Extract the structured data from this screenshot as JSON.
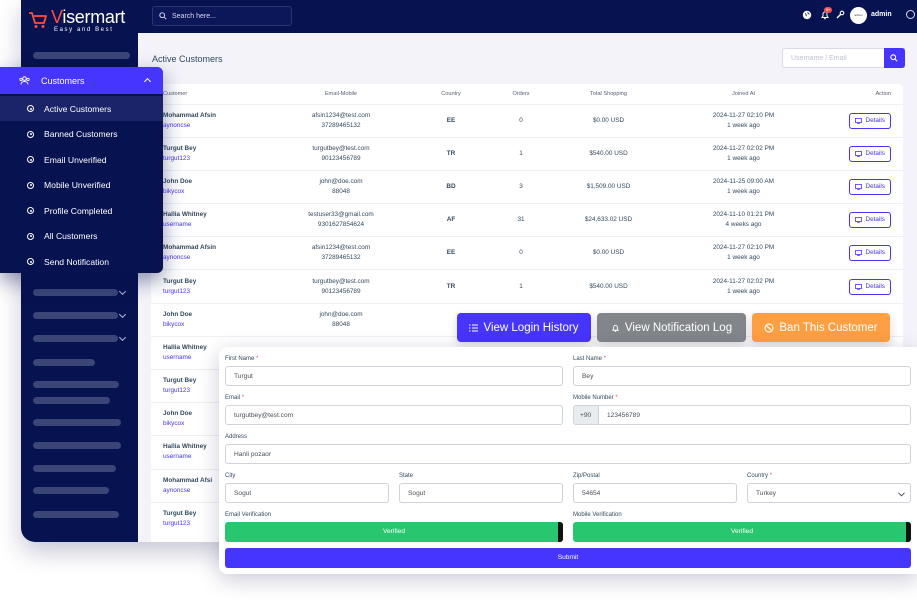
{
  "app": {
    "logo_name_accent": "V",
    "logo_name": "isermart",
    "logo_tagline": "Easy and Best"
  },
  "topbar": {
    "search_placeholder": "Search here...",
    "notification_count": "9+",
    "avatar_text": "admin",
    "user_name": "admin"
  },
  "page": {
    "title": "Active Customers",
    "filter_placeholder": "Username / Email"
  },
  "table": {
    "columns": [
      "Customer",
      "Email-Mobile",
      "Country",
      "Orders",
      "Total Shopping",
      "Joined At",
      "Action"
    ],
    "rows": [
      {
        "name": "Mohammad Afsin",
        "username": "aynoncse",
        "email": "afsin1234@test.com",
        "mobile": "37289465132",
        "country": "EE",
        "orders": "0",
        "total": "$0.00 USD",
        "joined": "2024-11-27 02:10 PM",
        "ago": "1 week ago",
        "action": "Details"
      },
      {
        "name": "Turgut Bey",
        "username": "turgut123",
        "email": "turgutbey@test.com",
        "mobile": "90123456789",
        "country": "TR",
        "orders": "1",
        "total": "$540.00 USD",
        "joined": "2024-11-27 02:02 PM",
        "ago": "1 week ago",
        "action": "Details"
      },
      {
        "name": "John Doe",
        "username": "bikycox",
        "email": "john@doe.com",
        "mobile": "88048",
        "country": "BD",
        "orders": "3",
        "total": "$1,509.00 USD",
        "joined": "2024-11-25 09:00 AM",
        "ago": "1 week ago",
        "action": "Details"
      },
      {
        "name": "Hallia Whitney",
        "username": "username",
        "email": "testuser33@gmail.com",
        "mobile": "9301627854624",
        "country": "AF",
        "orders": "31",
        "total": "$24,633.02 USD",
        "joined": "2024-11-10 01:21 PM",
        "ago": "4 weeks ago",
        "action": "Details"
      },
      {
        "name": "Mohammad Afsin",
        "username": "aynoncse",
        "email": "afsin1234@test.com",
        "mobile": "37289465132",
        "country": "EE",
        "orders": "0",
        "total": "$0.00 USD",
        "joined": "2024-11-27 02:10 PM",
        "ago": "1 week ago",
        "action": "Details"
      },
      {
        "name": "Turgut Bey",
        "username": "turgut123",
        "email": "turgutbey@test.com",
        "mobile": "90123456789",
        "country": "TR",
        "orders": "1",
        "total": "$540.00 USD",
        "joined": "2024-11-27 02:02 PM",
        "ago": "1 week ago",
        "action": "Details"
      },
      {
        "name": "John Doe",
        "username": "bikycox",
        "email": "john@doe.com",
        "mobile": "88048",
        "country": "",
        "orders": "",
        "total": "",
        "joined": "",
        "ago": "",
        "action": ""
      },
      {
        "name": "Hallia Whitney",
        "username": "username",
        "email": "",
        "mobile": "",
        "country": "",
        "orders": "",
        "total": "",
        "joined": "",
        "ago": "",
        "action": ""
      },
      {
        "name": "Turgut Bey",
        "username": "turgut123",
        "email": "",
        "mobile": "",
        "country": "",
        "orders": "",
        "total": "",
        "joined": "",
        "ago": "",
        "action": ""
      },
      {
        "name": "John Doe",
        "username": "bikycox",
        "email": "",
        "mobile": "",
        "country": "",
        "orders": "",
        "total": "",
        "joined": "",
        "ago": "",
        "action": ""
      },
      {
        "name": "Hallia Whitney",
        "username": "username",
        "email": "",
        "mobile": "",
        "country": "",
        "orders": "",
        "total": "",
        "joined": "",
        "ago": "",
        "action": ""
      },
      {
        "name": "Mohammad Afsi",
        "username": "aynoncse",
        "email": "",
        "mobile": "",
        "country": "",
        "orders": "",
        "total": "",
        "joined": "",
        "ago": "",
        "action": ""
      },
      {
        "name": "Turgut Bey",
        "username": "turgut123",
        "email": "",
        "mobile": "",
        "country": "",
        "orders": "",
        "total": "",
        "joined": "",
        "ago": "",
        "action": ""
      }
    ]
  },
  "actions": {
    "login_history": "View Login History",
    "notification_log": "View Notification Log",
    "ban": "Ban This Customer"
  },
  "form": {
    "first_name_label": "First Name",
    "first_name": "Turgut",
    "last_name_label": "Last Name",
    "last_name": "Bey",
    "email_label": "Email",
    "email": "turgutbey@test.com",
    "mobile_label": "Mobile Number",
    "mobile_prefix": "+90",
    "mobile": "123456789",
    "address_label": "Address",
    "address": "Hanli pozaor",
    "city_label": "City",
    "city": "Sogut",
    "state_label": "State",
    "state": "Sogut",
    "zip_label": "Zip/Postal",
    "zip": "54654",
    "country_label": "Country",
    "country": "Turkey",
    "email_verification_label": "Email Verification",
    "email_verification": "Verified",
    "mobile_verification_label": "Mobile Verification",
    "mobile_verification": "Verified",
    "submit": "Submit",
    "required_mark": "*"
  },
  "submenu": {
    "title": "Customers",
    "items": [
      "Active Customers",
      "Banned Customers",
      "Email Unverified",
      "Mobile Unverified",
      "Profile Completed",
      "All Customers",
      "Send Notification"
    ]
  },
  "colors": {
    "primary": "#4634ff",
    "dark": "#071251",
    "success": "#28c76f",
    "warning": "#ff9f43",
    "muted": "#82868b",
    "danger": "#ea5455"
  },
  "icons": [
    "search-icon",
    "globe-icon",
    "bell-icon",
    "wrench-icon",
    "chevron-down-icon",
    "desktop-icon",
    "list-icon",
    "ban-icon",
    "users-icon",
    "circle-dot-icon"
  ]
}
